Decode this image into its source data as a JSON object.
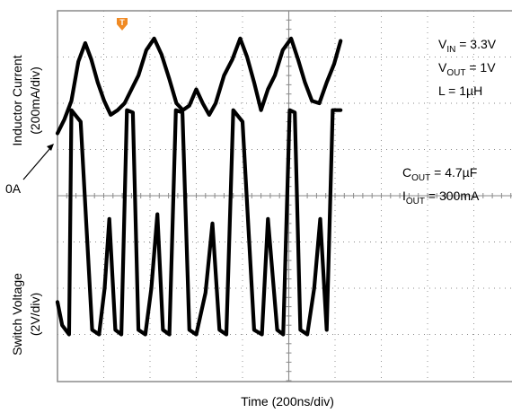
{
  "chart_data": {
    "type": "line",
    "title": "",
    "xlabel": "Time (200ns/div)",
    "x_unit": "ns",
    "x_range": [
      0,
      1000
    ],
    "grid": true,
    "series": [
      {
        "channel_label": [
          "Inductor Current",
          "(200mA/div)"
        ],
        "unit": "mA",
        "ylim": [
          -300,
          500
        ],
        "zero_marker": "0A",
        "x": [
          0,
          15,
          30,
          45,
          60,
          73,
          87,
          101,
          115,
          130,
          145,
          160,
          175,
          192,
          209,
          225,
          241,
          257,
          271,
          285,
          300,
          314,
          328,
          342,
          360,
          378,
          395,
          410,
          425,
          440,
          455,
          470,
          487,
          505,
          520,
          535,
          550,
          566,
          582,
          598,
          612
        ],
        "y": [
          235,
          265,
          305,
          390,
          430,
          395,
          345,
          305,
          275,
          285,
          300,
          330,
          360,
          415,
          440,
          405,
          355,
          300,
          285,
          295,
          330,
          300,
          275,
          300,
          360,
          395,
          440,
          400,
          345,
          285,
          330,
          360,
          415,
          440,
          395,
          345,
          305,
          300,
          345,
          385,
          435
        ]
      },
      {
        "channel_label": [
          "Switch Voltage",
          "(2V/div)"
        ],
        "unit": "V",
        "ylim": [
          -5,
          3
        ],
        "x": [
          0,
          10,
          25,
          30,
          50,
          75,
          90,
          102,
          112,
          125,
          138,
          150,
          163,
          175,
          190,
          203,
          216,
          228,
          242,
          256,
          270,
          285,
          300,
          320,
          335,
          350,
          365,
          380,
          400,
          425,
          442,
          455,
          475,
          488,
          502,
          513,
          525,
          540,
          555,
          568,
          582,
          595,
          612
        ],
        "y": [
          -3.3,
          -3.8,
          -4.0,
          0.85,
          0.6,
          -3.9,
          -4.0,
          -3.0,
          -1.5,
          -3.9,
          -4.0,
          0.85,
          0.8,
          -3.9,
          -4.0,
          -3.0,
          -1.4,
          -3.9,
          -4.0,
          0.85,
          0.8,
          -3.9,
          -4.0,
          -3.1,
          -1.6,
          -3.9,
          -4.0,
          0.85,
          0.6,
          -3.9,
          -4.0,
          -1.5,
          -3.9,
          -4.0,
          0.85,
          0.8,
          -3.9,
          -4.0,
          -3.0,
          -1.5,
          -3.9,
          0.85,
          0.85
        ]
      }
    ],
    "annotations": {
      "conditions_top": [
        {
          "base": "V",
          "sub": "IN",
          "rest": " = 3.3V"
        },
        {
          "base": "V",
          "sub": "OUT",
          "rest": " = 1V"
        },
        {
          "base": "L = 1µH",
          "sub": "",
          "rest": ""
        }
      ],
      "conditions_bottom": [
        {
          "base": "C",
          "sub": "OUT",
          "rest": " = 4.7µF"
        },
        {
          "base": "I",
          "sub": "OUT",
          "rest": " = 300mA"
        }
      ],
      "trigger_marker": "T"
    },
    "colors": {
      "trace": "#000000",
      "grid": "#8a8a8a",
      "trigger": "#f08a24"
    }
  }
}
